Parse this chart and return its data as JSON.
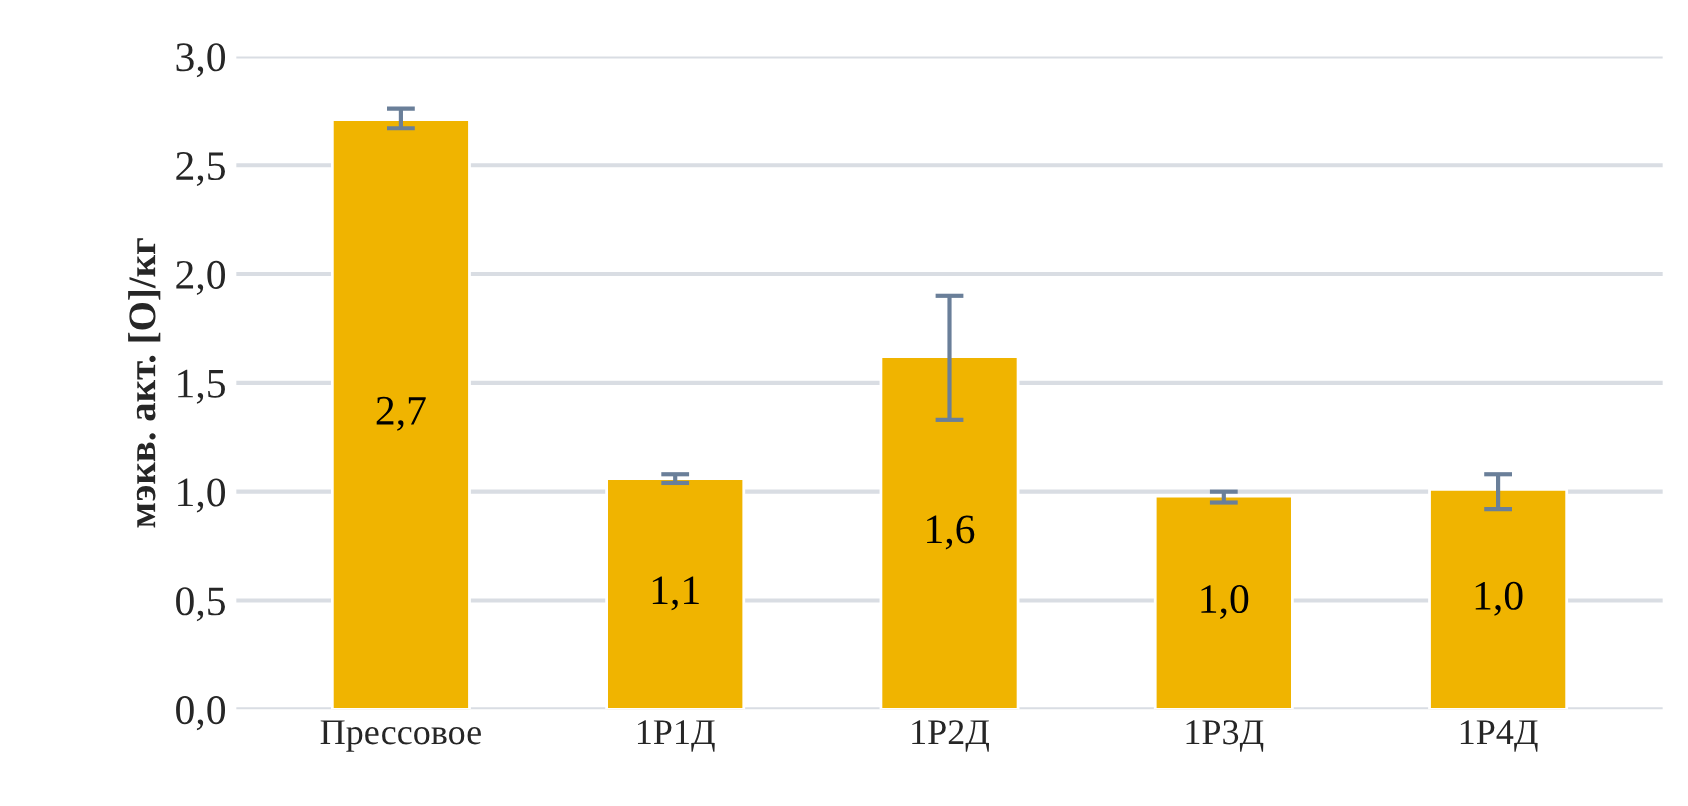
{
  "chart_data": {
    "type": "bar",
    "ylabel": "мэкв. акт. [O]/кг",
    "categories": [
      "Прессовое",
      "1Р1Д",
      "1Р2Д",
      "1Р3Д",
      "1Р4Д"
    ],
    "values": [
      2.71,
      1.06,
      1.62,
      0.98,
      1.01
    ],
    "errors": [
      [
        2.67,
        2.76
      ],
      [
        1.04,
        1.08
      ],
      [
        1.33,
        1.9
      ],
      [
        0.95,
        1.0
      ],
      [
        0.92,
        1.08
      ]
    ],
    "value_labels": [
      "2,7",
      "1,1",
      "1,6",
      "1,0",
      "1,0"
    ],
    "color": "#f0b400",
    "ylim": [
      0,
      3
    ],
    "yticks": [
      {
        "value": 0,
        "label": "0,0"
      },
      {
        "value": 0.5,
        "label": "0,5"
      },
      {
        "value": 1,
        "label": "1,0"
      },
      {
        "value": 1.5,
        "label": "1,5"
      },
      {
        "value": 2,
        "label": "2,0"
      },
      {
        "value": 2.5,
        "label": "2,5"
      },
      {
        "value": 3,
        "label": "3,0"
      }
    ],
    "grid": "y",
    "legend": false
  }
}
